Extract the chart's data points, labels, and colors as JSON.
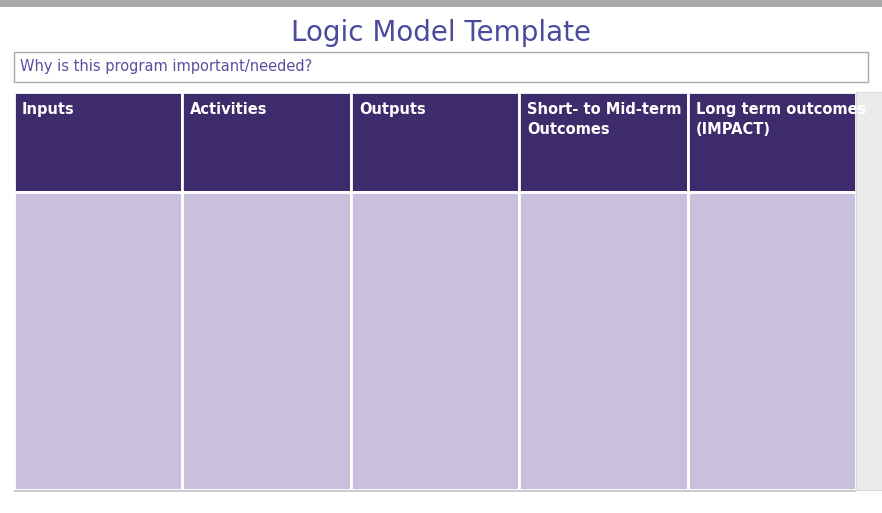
{
  "title": "Logic Model Template",
  "title_color": "#4B4B9B",
  "title_fontsize": 20,
  "subtitle_text": "Why is this program important/needed?",
  "subtitle_color": "#5B4FA0",
  "subtitle_fontsize": 10.5,
  "figure_bg": "#FFFFFF",
  "top_bar_color": "#AAAAAA",
  "header_bg": "#3D2B6B",
  "body_bg": "#C8C0DC",
  "cell_border_color": "#FFFFFF",
  "header_text_color": "#FFFFFF",
  "header_fontsize": 10.5,
  "columns": [
    "Inputs",
    "Activities",
    "Outputs",
    "Short- to Mid-term\nOutcomes",
    "Long term outcomes\n(IMPACT)"
  ],
  "n_cols": 5,
  "input_box_border": "#AAAAAA",
  "input_box_bg": "#FFFFFF",
  "scrollbar_bg": "#E0E0E0",
  "scrollbar_thumb": "#BBBBBB",
  "right_edge_bg": "#F0F0F0"
}
